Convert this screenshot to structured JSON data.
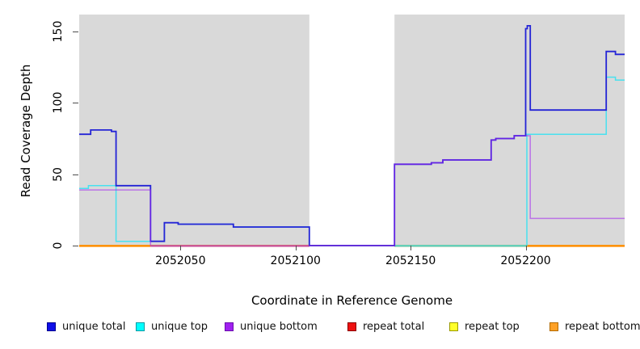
{
  "chart_data": {
    "type": "line",
    "subtype": "step-after-coverage-plot",
    "title": "",
    "xlabel": "Coordinate in Reference Genome",
    "ylabel": "Read Coverage Depth",
    "xlim": [
      2052006,
      2052243
    ],
    "ylim": [
      0,
      161
    ],
    "x_ticks": [
      2052050,
      2052100,
      2052150,
      2052200
    ],
    "y_ticks": [
      0,
      50,
      100,
      150
    ],
    "grid": false,
    "plot_background": "#d9d9d9",
    "no_data_region": {
      "from": 2052106,
      "to": 2052143
    },
    "series": [
      {
        "name": "unique total",
        "color": "#2424d6",
        "opacity": 1.0,
        "width": 1.8,
        "points": [
          [
            2052006,
            78
          ],
          [
            2052011,
            81
          ],
          [
            2052020,
            80
          ],
          [
            2052022,
            42
          ],
          [
            2052037,
            3
          ],
          [
            2052043,
            16
          ],
          [
            2052049,
            15
          ],
          [
            2052073,
            13
          ],
          [
            2052106,
            0
          ],
          [
            2052143,
            57
          ],
          [
            2052159,
            58
          ],
          [
            2052164,
            60
          ],
          [
            2052185,
            74
          ],
          [
            2052187,
            75
          ],
          [
            2052195,
            77
          ],
          [
            2052200,
            152
          ],
          [
            2052200.7,
            154
          ],
          [
            2052202,
            95
          ],
          [
            2052235,
            136
          ],
          [
            2052239,
            134
          ],
          [
            2052243,
            134
          ]
        ]
      },
      {
        "name": "unique top",
        "color": "#2ee2f2",
        "opacity": 0.85,
        "width": 1.5,
        "points": [
          [
            2052006,
            40
          ],
          [
            2052010,
            42
          ],
          [
            2052022,
            3
          ],
          [
            2052043,
            16
          ],
          [
            2052049,
            15
          ],
          [
            2052073,
            13
          ],
          [
            2052106,
            0
          ],
          [
            2052200.5,
            78
          ],
          [
            2052235,
            118
          ],
          [
            2052239,
            116
          ],
          [
            2052243,
            116
          ]
        ]
      },
      {
        "name": "unique bottom",
        "color": "#a020f0",
        "opacity": 0.55,
        "width": 1.5,
        "points": [
          [
            2052006,
            39
          ],
          [
            2052037,
            0
          ],
          [
            2052143,
            57
          ],
          [
            2052159,
            58
          ],
          [
            2052164,
            60
          ],
          [
            2052185,
            74
          ],
          [
            2052187,
            75
          ],
          [
            2052195,
            77
          ],
          [
            2052202,
            19
          ],
          [
            2052243,
            19
          ]
        ]
      },
      {
        "name": "repeat total",
        "color": "#dd1111",
        "opacity": 0.8,
        "width": 1.4,
        "points": [
          [
            2052006,
            0
          ],
          [
            2052243,
            0
          ]
        ]
      },
      {
        "name": "repeat top",
        "color": "#ffff2a",
        "opacity": 0.9,
        "width": 1.4,
        "points": [
          [
            2052006,
            0
          ],
          [
            2052243,
            0
          ]
        ]
      },
      {
        "name": "repeat bottom",
        "color": "#ff8c00",
        "opacity": 1.0,
        "width": 1.6,
        "points": [
          [
            2052006,
            0
          ],
          [
            2052243,
            0
          ]
        ]
      }
    ],
    "baseline_segments": [
      {
        "from": 2052006,
        "to": 2052037,
        "color": "#ff8c00"
      },
      {
        "from": 2052037,
        "to": 2052106,
        "color": "#d66a8c"
      },
      {
        "from": 2052143,
        "to": 2052200,
        "color": "#8fbf8f"
      },
      {
        "from": 2052200,
        "to": 2052243,
        "color": "#ff8c00"
      }
    ],
    "legend": {
      "position": "bottom",
      "entries": [
        {
          "label": "unique total",
          "fill": "#0f0fe8",
          "stroke": "#000090"
        },
        {
          "label": "unique top",
          "fill": "#00ffff",
          "stroke": "#009aa4"
        },
        {
          "label": "unique bottom",
          "fill": "#a020f0",
          "stroke": "#6a0dad"
        },
        {
          "label": "repeat total",
          "fill": "#ee1111",
          "stroke": "#8b0000"
        },
        {
          "label": "repeat top",
          "fill": "#ffff2a",
          "stroke": "#9a9a00"
        },
        {
          "label": "repeat bottom",
          "fill": "#ffa126",
          "stroke": "#b36b00"
        }
      ]
    }
  }
}
